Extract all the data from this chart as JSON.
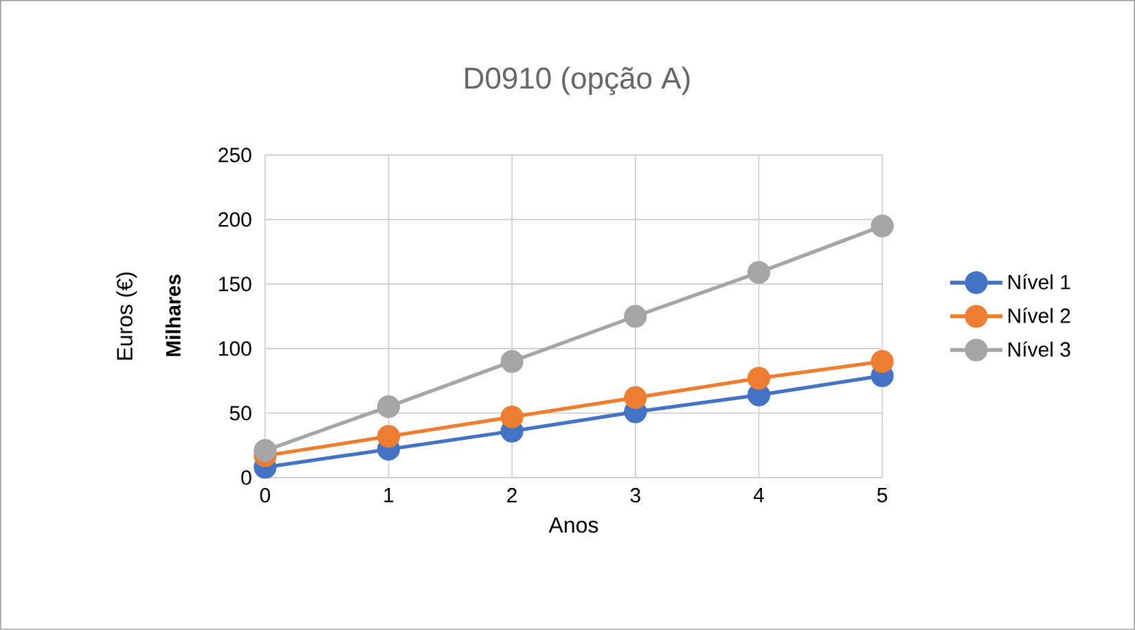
{
  "chart_data": {
    "type": "line",
    "title": "D0910 (opção A)",
    "xlabel": "Anos",
    "ylabel": "Euros (€)",
    "annotations": [
      "Milhares"
    ],
    "x": [
      0,
      1,
      2,
      3,
      4,
      5
    ],
    "xlim": [
      0,
      5
    ],
    "xticks": [
      0,
      1,
      2,
      3,
      4,
      5
    ],
    "ylim": [
      0,
      250
    ],
    "yticks": [
      0,
      50,
      100,
      150,
      200,
      250
    ],
    "grid": true,
    "legend": "right",
    "marker": "circle",
    "line_style": "solid",
    "series": [
      {
        "name": "Nível 1",
        "color": "#4472c4",
        "values": [
          8,
          22,
          36,
          51,
          64,
          79
        ]
      },
      {
        "name": "Nível 2",
        "color": "#ed7d31",
        "values": [
          17,
          32,
          47,
          62,
          77,
          90
        ]
      },
      {
        "name": "Nível 3",
        "color": "#a5a5a5",
        "values": [
          21,
          55,
          90,
          125,
          159,
          195
        ]
      }
    ]
  }
}
